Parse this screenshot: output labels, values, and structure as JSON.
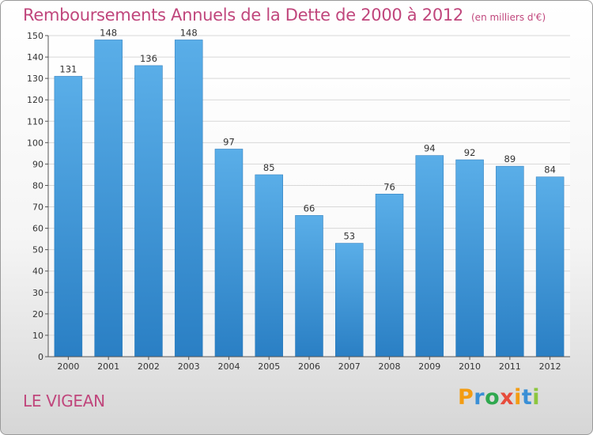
{
  "chart_data": {
    "type": "bar",
    "title": "Remboursements Annuels de la Dette de 2000 à 2012",
    "unit_note": "(en milliers d'€)",
    "categories": [
      "2000",
      "2001",
      "2002",
      "2003",
      "2004",
      "2005",
      "2006",
      "2007",
      "2008",
      "2009",
      "2010",
      "2011",
      "2012"
    ],
    "values": [
      131,
      148,
      136,
      148,
      97,
      85,
      66,
      53,
      76,
      94,
      92,
      89,
      84
    ],
    "yticks": [
      0,
      10,
      20,
      30,
      40,
      50,
      60,
      70,
      80,
      90,
      100,
      110,
      120,
      130,
      140,
      150
    ],
    "ylim": [
      0,
      150
    ],
    "xlabel": "",
    "ylabel": "",
    "grid": true,
    "bar_color_top": "#5aaee8",
    "bar_color_bottom": "#2a7fc4",
    "title_color": "#c0467c"
  },
  "commune": "LE VIGEAN",
  "logo": {
    "letters": [
      "P",
      "r",
      "o",
      "x",
      "i",
      "t",
      "i"
    ],
    "colors": [
      "#f39c12",
      "#3a8fd6",
      "#2fa84f",
      "#e74c3c",
      "#f39c12",
      "#3a8fd6",
      "#8cc63e"
    ]
  }
}
